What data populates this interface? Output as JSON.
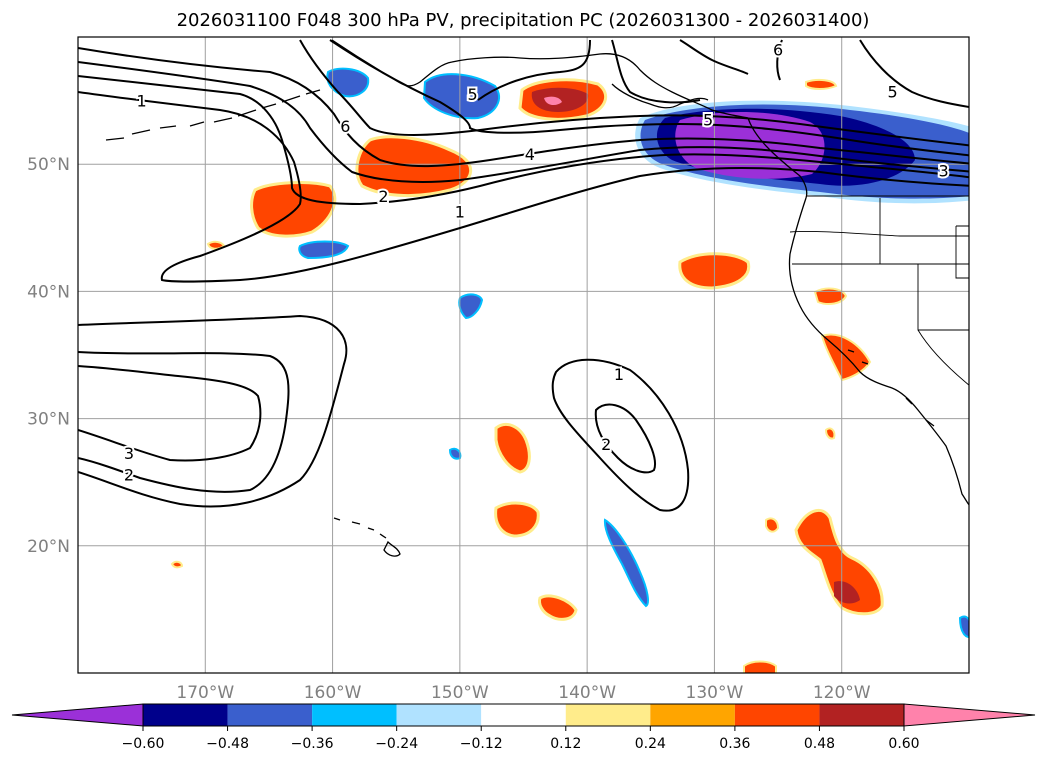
{
  "chart_data": {
    "type": "heatmap",
    "title": "2026031100 F048 300 hPa PV, precipitation PC (2026031300 - 2026031400)",
    "xaxis": {
      "ticks": [
        -170,
        -160,
        -150,
        -140,
        -130,
        -120
      ],
      "tick_labels": [
        "170°W",
        "160°W",
        "150°W",
        "140°W",
        "130°W",
        "120°W"
      ],
      "range": [
        -180,
        -110
      ]
    },
    "yaxis": {
      "ticks": [
        20,
        30,
        40,
        50
      ],
      "tick_labels": [
        "20°N",
        "30°N",
        "40°N",
        "50°N"
      ],
      "range": [
        10,
        60
      ]
    },
    "grid": true,
    "colorbar": {
      "orientation": "horizontal",
      "extend": "both",
      "levels": [
        -0.6,
        -0.48,
        -0.36,
        -0.24,
        -0.12,
        0.12,
        0.24,
        0.36,
        0.48,
        0.6
      ],
      "tick_labels": [
        "−0.60",
        "−0.48",
        "−0.36",
        "−0.24",
        "−0.12",
        "0.12",
        "0.24",
        "0.36",
        "0.48",
        "0.60"
      ],
      "colors": [
        "#9b30d8",
        "#00008b",
        "#3a5fcd",
        "#00bfff",
        "#b0e2ff",
        "#ffffff",
        "#ffec8b",
        "#ffa500",
        "#ff4500",
        "#b22222",
        "#ff82ab"
      ]
    },
    "pv_contour_labels": [
      {
        "value": "1",
        "lon": -175,
        "lat": 55.0
      },
      {
        "value": "6",
        "lon": -159,
        "lat": 53.0
      },
      {
        "value": "5",
        "lon": -149,
        "lat": 55.5
      },
      {
        "value": "4",
        "lon": -144.5,
        "lat": 50.8
      },
      {
        "value": "2",
        "lon": -156,
        "lat": 47.5
      },
      {
        "value": "1",
        "lon": -150,
        "lat": 46.3
      },
      {
        "value": "6",
        "lon": -125,
        "lat": 59.0
      },
      {
        "value": "5",
        "lon": -116,
        "lat": 55.7
      },
      {
        "value": "3",
        "lon": -112,
        "lat": 49.5
      },
      {
        "value": "5",
        "lon": -130.5,
        "lat": 53.5
      },
      {
        "value": "1",
        "lon": -137.5,
        "lat": 33.5
      },
      {
        "value": "2",
        "lon": -138.5,
        "lat": 28.0
      },
      {
        "value": "3",
        "lon": -176,
        "lat": 27.3
      },
      {
        "value": "2",
        "lon": -176,
        "lat": 25.6
      }
    ]
  }
}
